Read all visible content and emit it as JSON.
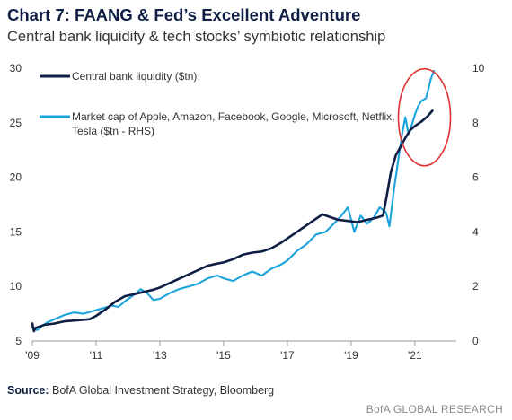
{
  "header": {
    "title": "Chart 7: FAANG & Fed’s Excellent Adventure",
    "subtitle": "Central bank liquidity & tech stocks’ symbiotic relationship"
  },
  "footer": {
    "source_label": "Source:",
    "source_text": " BofA Global Investment Strategy, Bloomberg",
    "credit": "BofA GLOBAL RESEARCH"
  },
  "colors": {
    "liquidity": "#0f1f44",
    "market_cap": "#1aa3dc",
    "highlight_circle": "#e03030",
    "axis": "#9a9a9a"
  },
  "chart_data": {
    "type": "line",
    "x_ticks": [
      "'09",
      "'11",
      "'13",
      "'15",
      "'17",
      "'19",
      "'21"
    ],
    "x_tick_values": [
      2009,
      2011,
      2013,
      2015,
      2017,
      2019,
      2021
    ],
    "xlim": [
      2009,
      2022.3
    ],
    "y_left": {
      "lim": [
        5,
        30
      ],
      "ticks": [
        5,
        10,
        15,
        20,
        25,
        30
      ]
    },
    "y_right": {
      "lim": [
        0,
        10
      ],
      "ticks": [
        0,
        2,
        4,
        6,
        8,
        10
      ]
    },
    "grid": false,
    "legend_position": "top-left",
    "annotations": [
      {
        "type": "circle",
        "description": "highlights 2020-2021 surge",
        "x_center": 2021.3,
        "y_center_left": 25.5
      }
    ],
    "series": [
      {
        "name": "Central bank liquidity ($tn)",
        "axis": "left",
        "x": [
          2009.0,
          2009.05,
          2009.1,
          2009.2,
          2009.4,
          2009.7,
          2010.0,
          2010.4,
          2010.8,
          2011.0,
          2011.3,
          2011.6,
          2011.9,
          2012.2,
          2012.5,
          2012.8,
          2013.0,
          2013.3,
          2013.6,
          2013.9,
          2014.2,
          2014.5,
          2014.8,
          2015.0,
          2015.3,
          2015.6,
          2015.9,
          2016.2,
          2016.5,
          2016.8,
          2017.0,
          2017.3,
          2017.6,
          2017.9,
          2018.1,
          2018.3,
          2018.6,
          2018.9,
          2019.2,
          2019.5,
          2019.8,
          2020.0,
          2020.1,
          2020.25,
          2020.4,
          2020.55,
          2020.7,
          2020.85,
          2021.0,
          2021.2,
          2021.4,
          2021.55
        ],
        "y": [
          6.6,
          5.9,
          6.2,
          6.3,
          6.5,
          6.6,
          6.8,
          6.9,
          7.0,
          7.3,
          7.9,
          8.6,
          9.1,
          9.3,
          9.5,
          9.7,
          9.9,
          10.3,
          10.7,
          11.1,
          11.5,
          11.9,
          12.1,
          12.2,
          12.5,
          12.9,
          13.1,
          13.2,
          13.5,
          14.0,
          14.4,
          15.0,
          15.6,
          16.2,
          16.6,
          16.4,
          16.1,
          16.0,
          15.9,
          16.1,
          16.3,
          16.5,
          18.0,
          20.5,
          22.0,
          22.8,
          23.6,
          24.3,
          24.7,
          25.1,
          25.6,
          26.1
        ]
      },
      {
        "name": "Market cap of Apple, Amazon, Facebook, Google, Microsoft, Netflix, Tesla ($tn - RHS)",
        "axis": "right",
        "x": [
          2009.0,
          2009.15,
          2009.3,
          2009.5,
          2009.8,
          2010.0,
          2010.3,
          2010.6,
          2010.9,
          2011.2,
          2011.5,
          2011.7,
          2011.9,
          2012.2,
          2012.4,
          2012.6,
          2012.8,
          2013.0,
          2013.3,
          2013.6,
          2013.9,
          2014.2,
          2014.5,
          2014.8,
          2015.0,
          2015.3,
          2015.6,
          2015.9,
          2016.2,
          2016.5,
          2016.8,
          2017.0,
          2017.3,
          2017.6,
          2017.9,
          2018.2,
          2018.5,
          2018.7,
          2018.9,
          2019.1,
          2019.3,
          2019.5,
          2019.7,
          2019.9,
          2020.1,
          2020.2,
          2020.35,
          2020.5,
          2020.6,
          2020.7,
          2020.8,
          2020.9,
          2021.0,
          2021.1,
          2021.2,
          2021.35,
          2021.5,
          2021.6
        ],
        "y": [
          0.5,
          0.4,
          0.55,
          0.7,
          0.85,
          0.95,
          1.05,
          1.0,
          1.1,
          1.2,
          1.3,
          1.25,
          1.45,
          1.7,
          1.9,
          1.75,
          1.5,
          1.55,
          1.75,
          1.9,
          2.0,
          2.1,
          2.3,
          2.4,
          2.3,
          2.2,
          2.4,
          2.55,
          2.4,
          2.65,
          2.8,
          2.95,
          3.3,
          3.55,
          3.9,
          4.0,
          4.35,
          4.6,
          4.9,
          4.0,
          4.6,
          4.3,
          4.5,
          4.9,
          4.7,
          4.2,
          5.6,
          6.8,
          7.6,
          8.2,
          7.6,
          7.9,
          8.3,
          8.6,
          8.8,
          8.9,
          9.6,
          9.9
        ]
      }
    ]
  }
}
